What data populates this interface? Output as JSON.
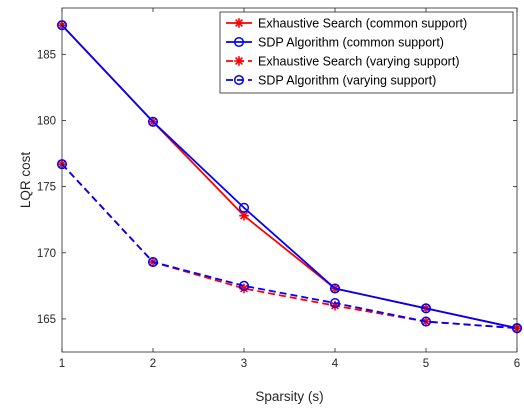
{
  "chart_data": {
    "type": "line",
    "title": "",
    "xlabel": "Sparsity (s)",
    "ylabel": "LQR cost",
    "x": [
      1,
      2,
      3,
      4,
      5,
      6
    ],
    "xlim": [
      1,
      6
    ],
    "ylim": [
      162.5,
      188.5
    ],
    "xticks": [
      "1",
      "2",
      "3",
      "4",
      "5",
      "6"
    ],
    "yticks": [
      165,
      170,
      175,
      180,
      185
    ],
    "yticklabels": [
      "165",
      "170",
      "175",
      "180",
      "185"
    ],
    "grid": false,
    "legend_position": "top-right",
    "series": [
      {
        "name": "Exhaustive Search (common support)",
        "values": [
          187.2,
          179.9,
          172.8,
          167.3,
          165.8,
          164.3
        ],
        "color": "#ff0000",
        "dash": "solid",
        "marker": "asterisk"
      },
      {
        "name": "SDP Algorithm (common support)",
        "values": [
          187.2,
          179.9,
          173.4,
          167.3,
          165.8,
          164.3
        ],
        "color": "#0000ff",
        "dash": "solid",
        "marker": "circle"
      },
      {
        "name": "Exhaustive Search (varying support)",
        "values": [
          176.7,
          169.3,
          167.3,
          166.0,
          164.8,
          164.3
        ],
        "color": "#ff0000",
        "dash": "dashed",
        "marker": "asterisk"
      },
      {
        "name": "SDP Algorithm (varying support)",
        "values": [
          176.7,
          169.3,
          167.5,
          166.2,
          164.8,
          164.3
        ],
        "color": "#0000ff",
        "dash": "dashed",
        "marker": "circle"
      }
    ]
  }
}
